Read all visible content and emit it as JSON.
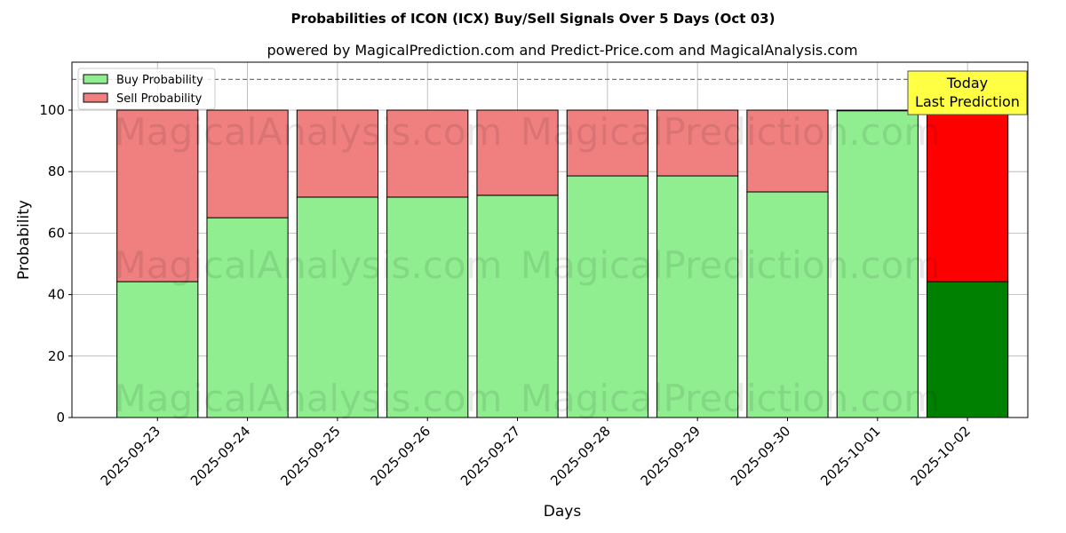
{
  "chart_data": {
    "type": "bar",
    "stacked": true,
    "title": "Probabilities of ICON (ICX) Buy/Sell Signals Over 5 Days (Oct 03)",
    "subtitle": "powered by MagicalPrediction.com and Predict-Price.com and MagicalAnalysis.com",
    "xlabel": "Days",
    "ylabel": "Probability",
    "ylim": [
      0,
      115.6
    ],
    "yticks": [
      0,
      20,
      40,
      60,
      80,
      100
    ],
    "grid": true,
    "legend_position": "top-left",
    "categories": [
      "2025-09-23",
      "2025-09-24",
      "2025-09-25",
      "2025-09-26",
      "2025-09-27",
      "2025-09-28",
      "2025-09-29",
      "2025-09-30",
      "2025-10-01",
      "2025-10-02"
    ],
    "series": [
      {
        "name": "Buy Probability",
        "color": "#90ee90",
        "values": [
          44.2,
          65.0,
          71.7,
          71.7,
          72.3,
          78.6,
          78.6,
          73.4,
          99.8,
          44.2
        ]
      },
      {
        "name": "Sell Probability",
        "color": "#f08080",
        "values": [
          55.8,
          35.0,
          28.3,
          28.3,
          27.7,
          21.4,
          21.4,
          26.6,
          0.2,
          55.8
        ]
      }
    ],
    "highlight": {
      "index": 9,
      "buy_color": "#008000",
      "sell_color": "#ff0000"
    },
    "reference_line": 110,
    "annotation": [
      "Today",
      "Last Prediction"
    ],
    "watermarks": [
      "MagicalAnalysis.com",
      "MagicalPrediction.com"
    ]
  }
}
